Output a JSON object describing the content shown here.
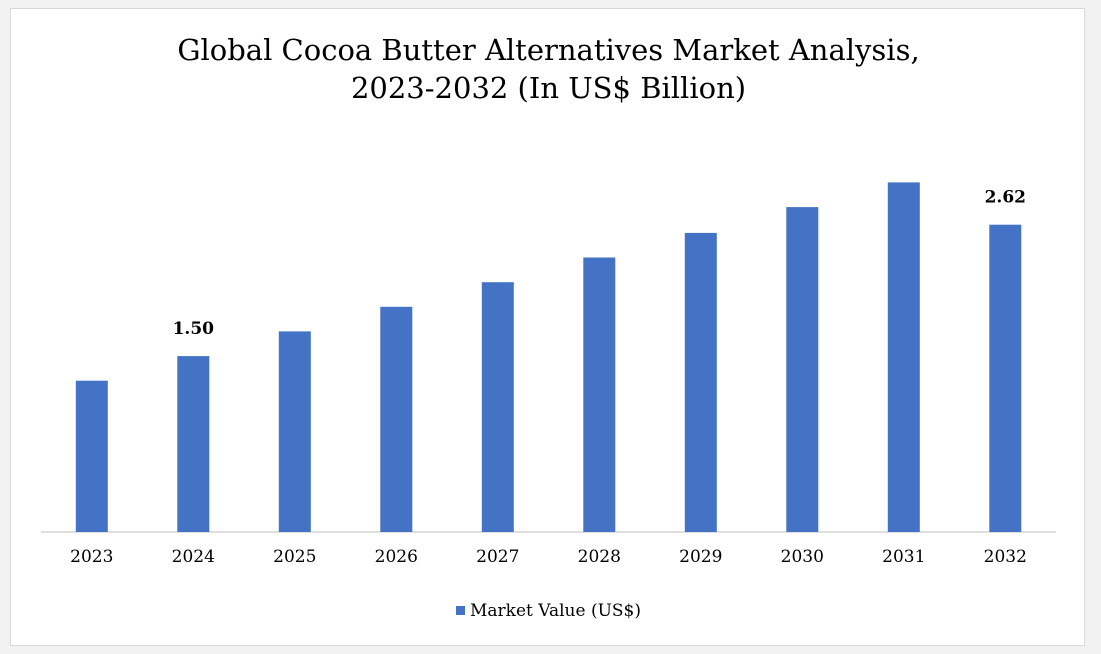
{
  "chart_data": {
    "type": "bar",
    "title_line1": "Global Cocoa Butter Alternatives Market Analysis,",
    "title_line2": "2023-2032 (In US$ Billion)",
    "categories": [
      "2023",
      "2024",
      "2025",
      "2026",
      "2027",
      "2028",
      "2029",
      "2030",
      "2031",
      "2032"
    ],
    "series": [
      {
        "name": "Market Value (US$)",
        "values": [
          1.29,
          1.5,
          1.71,
          1.92,
          2.13,
          2.34,
          2.55,
          2.77,
          2.98,
          2.62
        ]
      }
    ],
    "data_labels": {
      "2024": "1.50",
      "2032": "2.62"
    },
    "xlabel": "",
    "ylabel": "",
    "ylim": [
      0,
      3.0
    ],
    "y_axis_visible": false,
    "grid": false,
    "legend_position": "bottom",
    "bar_color": "#4472C4",
    "axis_color": "#bfbfbf"
  }
}
